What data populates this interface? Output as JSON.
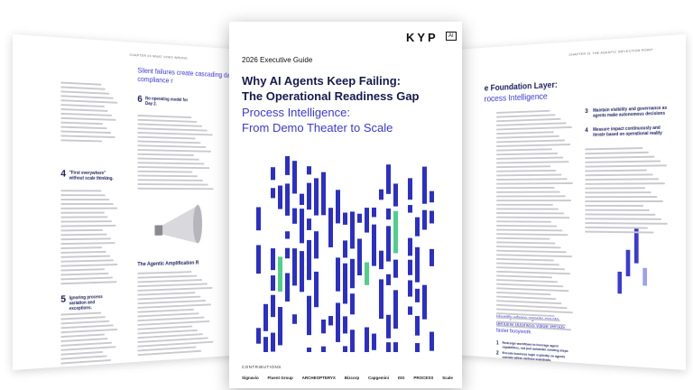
{
  "cover": {
    "logo": "KYP",
    "logo_badge": "AI",
    "kicker": "2026 Executive Guide",
    "title_lines": [
      "Why AI Agents Keep Failing:",
      "The Operational Readiness Gap"
    ],
    "subtitle_lines": [
      "Process Intelligence:",
      "From Demo Theater to Scale"
    ],
    "contributions_label": "CONTRIBUTIONS",
    "contributors": [
      "Signavio",
      "Fluent Group",
      "ARCHEOPTERYX",
      "Bizcorp",
      "Capgemini",
      "ISG",
      "PROCESS",
      "Scale"
    ]
  },
  "left_page": {
    "chapter": "CHAPTER 03  WHAT GOES WRONG",
    "heading": "Silent failures create cascading damage and compliance r",
    "items": [
      {
        "number": "4",
        "text": "\"First everywhere\" without scale thinking."
      },
      {
        "number": "5",
        "text": "Ignoring process variation and exceptions."
      },
      {
        "number": "6",
        "text": "No operating model for Day 2."
      }
    ],
    "section_heading": "The Agentic Amplification R"
  },
  "right_page": {
    "chapter": "CHAPTER 01  THE AGENTIC INFLECTION POINT",
    "heading_lines": [
      "e Foundation Layer:",
      "rocess Intelligence"
    ],
    "items_top": [
      {
        "number": "3",
        "text": "Maintain visibility and governance as agents make autonomous decisions"
      },
      {
        "number": "4",
        "text": "Measure impact continuously and iterate based on operational reality"
      }
    ],
    "callout": "Identify where agents create genuine business value versus faster busywork",
    "items_bottom": [
      {
        "number": "1",
        "text": "Redesign workflows to leverage agent capabilities, not just automate existing steps"
      },
      {
        "number": "2",
        "text": "Encode business logic explicitly so agents operate within defined guardrails."
      }
    ]
  }
}
